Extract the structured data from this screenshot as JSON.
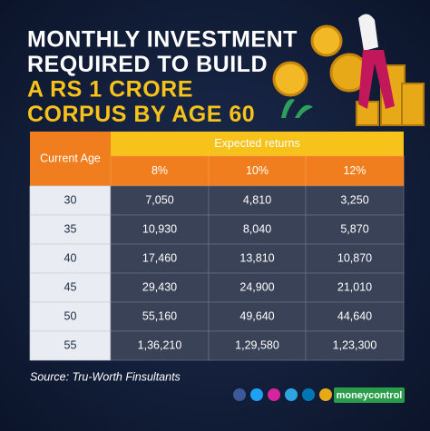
{
  "title": [
    "MONTHLY INVESTMENT",
    "REQUIRED TO BUILD",
    "A RS 1 CRORE",
    "CORPUS BY AGE 60"
  ],
  "table": {
    "corner": "Current Age",
    "group_header": "Expected returns",
    "columns": [
      "8%",
      "10%",
      "12%"
    ],
    "rows": [
      [
        "30",
        "7,050",
        "4,810",
        "3,250"
      ],
      [
        "35",
        "10,930",
        "8,040",
        "5,870"
      ],
      [
        "40",
        "17,460",
        "13,810",
        "10,870"
      ],
      [
        "45",
        "29,430",
        "24,900",
        "21,010"
      ],
      [
        "50",
        "55,160",
        "49,640",
        "44,640"
      ],
      [
        "55",
        "1,36,210",
        "1,29,580",
        "1,23,300"
      ]
    ]
  },
  "source": "Source: Tru-Worth Finsultants",
  "brand": "moneycontrol"
}
